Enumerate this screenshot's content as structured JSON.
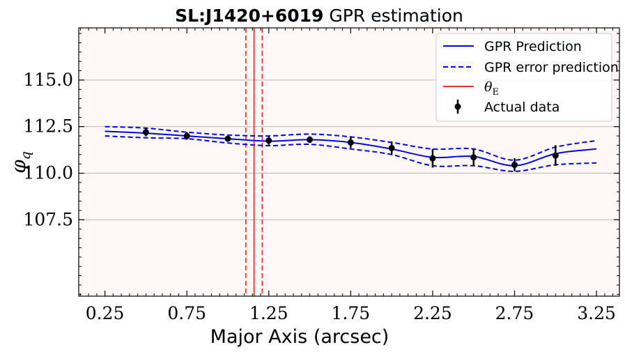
{
  "chart_data": {
    "type": "line",
    "title_bold": "SL:J1420+6019",
    "title_rest": " GPR estimation",
    "xlabel": "Major Axis (arcsec)",
    "ylabel_symbol": "φ",
    "ylabel_sub": "q",
    "xlim": [
      0.09,
      3.39
    ],
    "ylim": [
      103.4,
      117.8
    ],
    "xticks": [
      0.25,
      0.75,
      1.25,
      1.75,
      2.25,
      2.75,
      3.25
    ],
    "xtick_labels": [
      "0.25",
      "0.75",
      "1.25",
      "1.75",
      "2.25",
      "2.75",
      "3.25"
    ],
    "yticks": [
      107.5,
      110.0,
      112.5,
      115.0
    ],
    "ytick_labels": [
      "107.5",
      "110.0",
      "112.5",
      "115.0"
    ],
    "grid": "horizontal",
    "legend_position": "top-right",
    "legend": {
      "pred_label": "GPR Prediction",
      "err_label": "GPR error prediction",
      "theta_symbol": "θ",
      "theta_sub": "E",
      "data_label": "Actual data"
    },
    "colors": {
      "prediction": "#0000ee",
      "theta": "#ee3333",
      "data": "#000000",
      "plot_bg": "#fff8f8",
      "grid": "#bbb5b5"
    },
    "series": [
      {
        "name": "GPR Prediction",
        "style": "solid",
        "x": [
          0.25,
          0.5,
          0.75,
          1.0,
          1.25,
          1.5,
          1.75,
          2.0,
          2.25,
          2.5,
          2.75,
          3.0,
          3.25
        ],
        "y": [
          112.25,
          112.15,
          112.0,
          111.85,
          111.72,
          111.8,
          111.65,
          111.3,
          110.85,
          110.9,
          110.4,
          111.05,
          111.3
        ]
      },
      {
        "name": "GPR error prediction",
        "style": "dashed",
        "x": [
          0.25,
          0.5,
          0.75,
          1.0,
          1.25,
          1.5,
          1.75,
          2.0,
          2.25,
          2.5,
          2.75,
          3.0,
          3.25
        ],
        "y": [
          112.5,
          112.42,
          112.2,
          112.05,
          112.0,
          112.1,
          111.95,
          111.65,
          111.3,
          111.3,
          110.7,
          111.4,
          111.75
        ]
      },
      {
        "name": "GPR error prediction",
        "style": "dashed",
        "x": [
          0.25,
          0.5,
          0.75,
          1.0,
          1.25,
          1.5,
          1.75,
          2.0,
          2.25,
          2.5,
          2.75,
          3.0,
          3.25
        ],
        "y": [
          112.0,
          111.9,
          111.85,
          111.62,
          111.48,
          111.55,
          111.3,
          111.0,
          110.4,
          110.4,
          110.1,
          110.45,
          110.55
        ]
      }
    ],
    "actual_data": {
      "name": "Actual data",
      "x": [
        0.5,
        0.75,
        1.0,
        1.25,
        1.5,
        1.75,
        2.0,
        2.25,
        2.5,
        2.75,
        3.0
      ],
      "y": [
        112.2,
        112.0,
        111.85,
        111.75,
        111.8,
        111.65,
        111.35,
        110.8,
        110.85,
        110.45,
        110.95
      ],
      "yerr": [
        0.22,
        0.2,
        0.15,
        0.22,
        0.18,
        0.3,
        0.35,
        0.5,
        0.45,
        0.35,
        0.55
      ]
    },
    "theta_E": {
      "value": 1.16,
      "lower": 1.11,
      "upper": 1.21
    }
  }
}
